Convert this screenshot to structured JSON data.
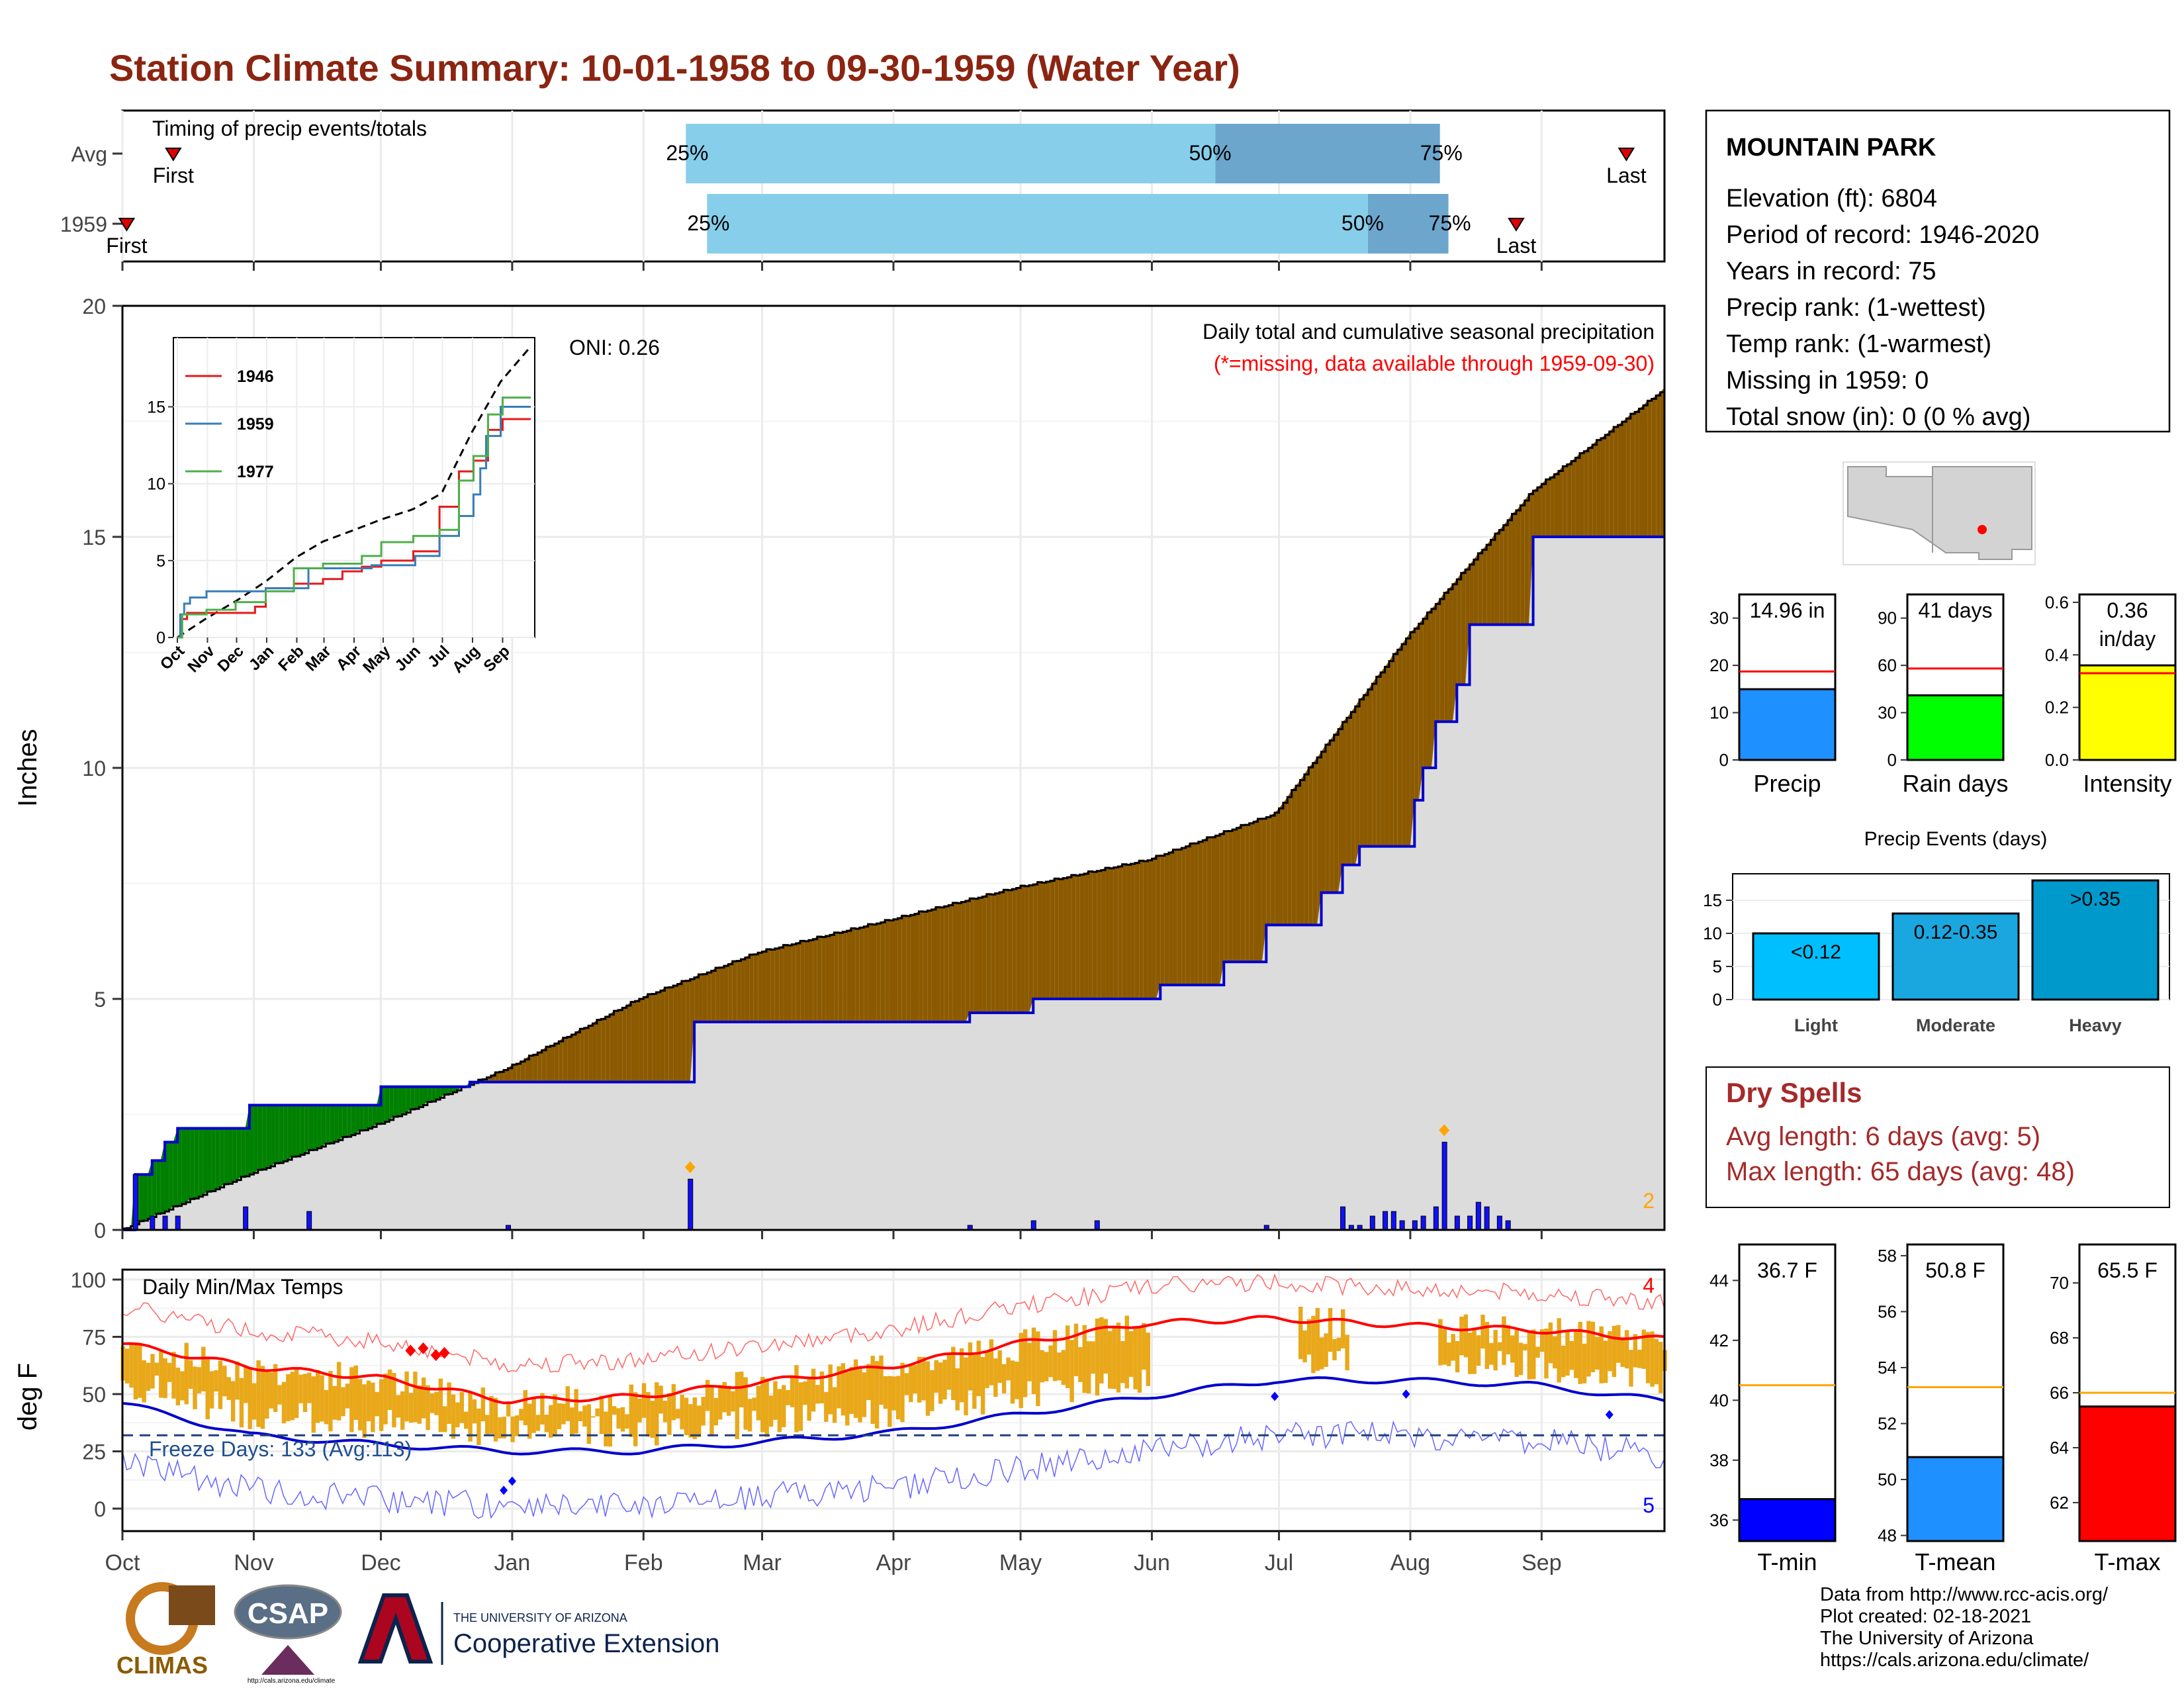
{
  "title": "Station Climate Summary: 10-01-1958 to 09-30-1959 (Water Year)",
  "months": [
    "Oct",
    "Nov",
    "Dec",
    "Jan",
    "Feb",
    "Mar",
    "Apr",
    "May",
    "Jun",
    "Jul",
    "Aug",
    "Sep"
  ],
  "timing": {
    "label": "Timing of precip events/totals",
    "rows": [
      "Avg",
      "1959"
    ],
    "avg": {
      "first": "First",
      "last": "Last",
      "p25": "25%",
      "p50": "50%",
      "p75": "75%",
      "first_doy": 12,
      "p25_doy": 133,
      "p50_doy": 258,
      "p75_doy": 311,
      "last_doy": 355
    },
    "y1959": {
      "first": "First",
      "last": "Last",
      "p25": "25%",
      "p50": "50%",
      "p75": "75%",
      "first_doy": 1,
      "p25_doy": 138,
      "p50_doy": 294,
      "p75_doy": 313,
      "last_doy": 329
    }
  },
  "precip_panel": {
    "ylabel": "Inches",
    "y_ticks": [
      "0",
      "5",
      "10",
      "15",
      "20"
    ],
    "ylim": [
      0,
      20
    ],
    "oni": "ONI: 0.26",
    "caption": "Daily total and cumulative seasonal precipitation",
    "missing_note": "(*=missing, data available through 1959-09-30)",
    "extreme_count": "2",
    "colors": {
      "avg_fill": "#8B5A00",
      "wet_fill": "#008000",
      "obs_line": "#0000CD",
      "bars": "#1010FF",
      "marker": "#FFA500"
    }
  },
  "inset": {
    "y_ticks": [
      "0",
      "5",
      "10",
      "15"
    ],
    "x_ticks": [
      "Oct",
      "Nov",
      "Dec",
      "Jan",
      "Feb",
      "Mar",
      "Apr",
      "May",
      "Jun",
      "Jul",
      "Aug",
      "Sep"
    ],
    "legend": [
      {
        "name": "1946",
        "color": "#E41A1C"
      },
      {
        "name": "1959",
        "color": "#377EB8"
      },
      {
        "name": "1977",
        "color": "#4DAF4A"
      }
    ]
  },
  "temp_panel": {
    "ylabel": "deg F",
    "label": "Daily Min/Max Temps",
    "y_ticks": [
      "0",
      "25",
      "50",
      "75",
      "100"
    ],
    "freeze": "Freeze Days: 133 (Avg:113)",
    "max_extreme_count": "4",
    "min_extreme_count": "5"
  },
  "station": {
    "name": "MOUNTAIN PARK",
    "lines": [
      "Elevation (ft): 6804",
      "Period of record: 1946-2020",
      "Years in record: 75",
      "Precip rank:  (1-wettest)",
      "Temp rank:  (1-warmest)",
      "Missing in 1959: 0",
      "Total snow (in): 0 (0 % avg)"
    ]
  },
  "summary_bars": [
    {
      "label": "Precip",
      "value_text": "14.96 in",
      "value": 14.96,
      "avg": 18.7,
      "ymax": 35,
      "ticks": [
        "0",
        "10",
        "20",
        "30"
      ],
      "color": "#1E90FF"
    },
    {
      "label": "Rain days",
      "value_text": "41 days",
      "value": 41,
      "avg": 58,
      "ymax": 105,
      "ticks": [
        "0",
        "30",
        "60",
        "90"
      ],
      "color": "#00FF00"
    },
    {
      "label": "Intensity",
      "value_text": "0.36 in/day",
      "value": 0.36,
      "avg": 0.33,
      "ymax": 0.63,
      "ticks": [
        "0.0",
        "0.2",
        "0.4",
        "0.6"
      ],
      "color": "#FFFF00"
    }
  ],
  "events": {
    "title": "Precip Events (days)",
    "ticks": [
      "0",
      "5",
      "10",
      "15"
    ],
    "bars": [
      {
        "name": "Light",
        "label": "<0.12",
        "value": 10,
        "color": "#00BFFF"
      },
      {
        "name": "Moderate",
        "label": "0.12-0.35",
        "value": 13,
        "color": "#1AA7E0"
      },
      {
        "name": "Heavy",
        "label": ">0.35",
        "value": 18,
        "color": "#0099CC"
      }
    ]
  },
  "dry_spells": {
    "title": "Dry Spells",
    "avg": "Avg length: 6 days (avg: 5)",
    "max": "Max length: 65 days (avg: 48)"
  },
  "temp_bars": [
    {
      "label": "T-min",
      "value_text": "36.7 F",
      "value": 36.7,
      "avg": 40.5,
      "ymin": 35.3,
      "ymax": 45.2,
      "ticks": [
        "36",
        "38",
        "40",
        "42",
        "44"
      ],
      "color": "#0000FF"
    },
    {
      "label": "T-mean",
      "value_text": "50.8 F",
      "value": 50.8,
      "avg": 53.3,
      "ymin": 47.8,
      "ymax": 58.4,
      "ticks": [
        "48",
        "50",
        "52",
        "54",
        "56",
        "58"
      ],
      "color": "#1E90FF"
    },
    {
      "label": "T-max",
      "value_text": "65.5 F",
      "value": 65.5,
      "avg": 66.0,
      "ymin": 60.6,
      "ymax": 71.4,
      "ticks": [
        "62",
        "64",
        "66",
        "68",
        "70"
      ],
      "color": "#FF0000"
    }
  ],
  "footer": [
    "Data from http://www.rcc-acis.org/",
    "Plot created: 02-18-2021",
    "The University of Arizona",
    "https://cals.arizona.edu/climate/"
  ],
  "logos": {
    "climas": "CLIMAS",
    "csap": "CSAP",
    "csap_url": "http://cals.arizona.edu/climate",
    "ua_small": "THE UNIVERSITY OF ARIZONA",
    "ua_big": "Cooperative Extension"
  },
  "chart_data": {
    "type": "area",
    "title": "Daily total and cumulative seasonal precipitation",
    "ylabel": "Inches",
    "ylim": [
      0,
      20
    ],
    "x_unit": "day of water year",
    "avg_cumulative": {
      "x": [
        0,
        30,
        61,
        91,
        122,
        150,
        181,
        211,
        242,
        272,
        303,
        333,
        364
      ],
      "y": [
        0,
        1.2,
        2.3,
        3.5,
        5.0,
        6.0,
        6.7,
        7.4,
        8.0,
        9.0,
        12.8,
        16.0,
        18.2
      ]
    },
    "observed_cumulative": {
      "x": [
        0,
        3,
        7,
        10,
        13,
        30,
        44,
        61,
        77,
        82,
        91,
        96,
        134,
        135,
        160,
        181,
        200,
        215,
        245,
        260,
        270,
        283,
        288,
        292,
        305,
        307,
        310,
        315,
        318,
        333,
        364
      ],
      "y": [
        0,
        1.2,
        1.5,
        1.9,
        2.2,
        2.7,
        2.7,
        3.1,
        3.1,
        3.2,
        3.2,
        3.2,
        3.2,
        4.5,
        4.5,
        4.5,
        4.7,
        5.0,
        5.3,
        5.8,
        6.6,
        7.3,
        7.9,
        8.3,
        9.3,
        10.0,
        11.0,
        11.8,
        13.1,
        15.0,
        15.0
      ]
    },
    "daily_precip": {
      "x": [
        3,
        7,
        10,
        13,
        29,
        44,
        91,
        134,
        200,
        215,
        230,
        270,
        288,
        290,
        292,
        295,
        298,
        300,
        302,
        305,
        307,
        310,
        312,
        315,
        318,
        320,
        322,
        325,
        327
      ],
      "y": [
        1.2,
        0.3,
        0.3,
        0.3,
        0.5,
        0.4,
        0.1,
        1.1,
        0.1,
        0.2,
        0.2,
        0.1,
        0.5,
        0.1,
        0.1,
        0.3,
        0.4,
        0.4,
        0.2,
        0.2,
        0.3,
        0.5,
        1.9,
        0.3,
        0.3,
        0.6,
        0.5,
        0.3,
        0.2
      ]
    },
    "max_temp_climatology": {
      "x": [
        0,
        30,
        61,
        91,
        122,
        150,
        181,
        211,
        242,
        272,
        303,
        333,
        364
      ],
      "y": [
        72,
        62,
        57,
        47,
        49,
        55,
        62,
        72,
        81,
        83,
        80,
        78,
        74
      ]
    },
    "min_temp_climatology": {
      "x": [
        0,
        30,
        61,
        91,
        122,
        150,
        181,
        211,
        242,
        272,
        303,
        333,
        364
      ],
      "y": [
        46,
        32,
        28,
        25,
        25,
        29,
        33,
        41,
        49,
        56,
        56,
        54,
        47
      ]
    },
    "freeze_threshold": 32
  }
}
